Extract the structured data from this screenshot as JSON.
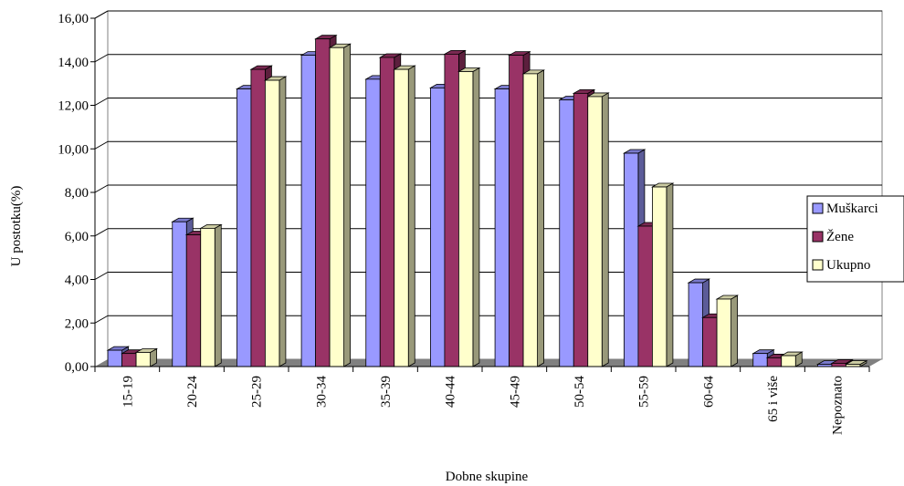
{
  "chart_data": {
    "type": "bar",
    "title": "",
    "xlabel": "Dobne skupine",
    "ylabel": "U postotku(%)",
    "ylim": [
      0,
      16
    ],
    "yticks": [
      "0,00",
      "2,00",
      "4,00",
      "6,00",
      "8,00",
      "10,00",
      "12,00",
      "14,00",
      "16,00"
    ],
    "grid": true,
    "legend_position": "right",
    "categories": [
      "15-19",
      "20-24",
      "25-29",
      "30-34",
      "35-39",
      "40-44",
      "45-49",
      "50-54",
      "55-59",
      "60-64",
      "65 i više",
      "Nepoznato"
    ],
    "series": [
      {
        "name": "Muškarci",
        "color": "#9999ff",
        "values": [
          0.75,
          6.65,
          12.75,
          14.3,
          13.2,
          12.8,
          12.75,
          12.25,
          9.8,
          3.85,
          0.6,
          0.1
        ]
      },
      {
        "name": "Žene",
        "color": "#993366",
        "values": [
          0.6,
          6.05,
          13.65,
          15.05,
          14.2,
          14.35,
          14.3,
          12.55,
          6.45,
          2.25,
          0.4,
          0.15
        ]
      },
      {
        "name": "Ukupno",
        "color": "#ffffcc",
        "values": [
          0.65,
          6.35,
          13.15,
          14.65,
          13.65,
          13.55,
          13.45,
          12.4,
          8.25,
          3.1,
          0.5,
          0.1
        ]
      }
    ]
  }
}
